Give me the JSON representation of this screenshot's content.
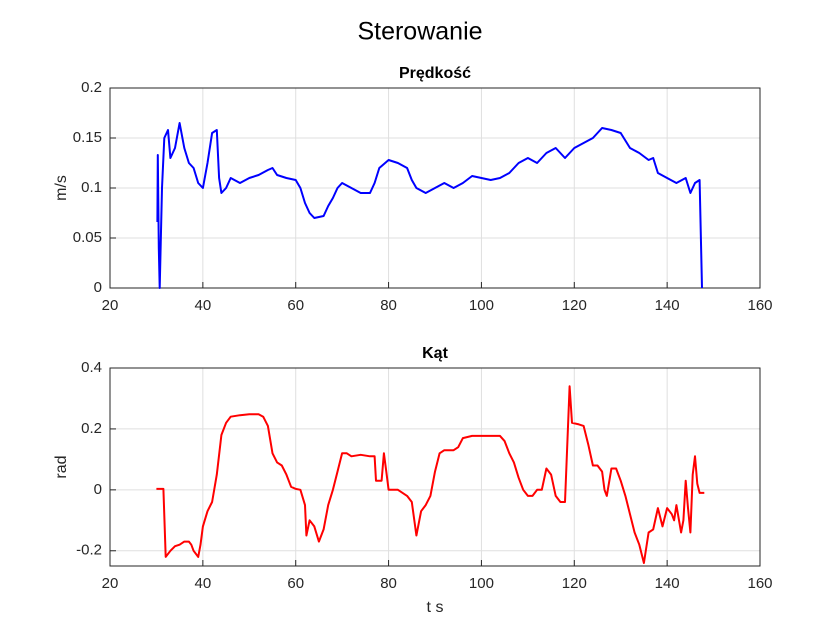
{
  "title": "Sterowanie",
  "chart_data": [
    {
      "type": "line",
      "title": "Prędkość",
      "ylabel": "m/s",
      "color": "#0000ff",
      "xlim": [
        20,
        160
      ],
      "ylim": [
        0,
        0.2
      ],
      "xticks": [
        20,
        40,
        60,
        80,
        100,
        120,
        140,
        160
      ],
      "yticks": [
        0,
        0.05,
        0.1,
        0.15,
        0.2
      ],
      "grid": true,
      "x": [
        30.2,
        30.3,
        30.5,
        30.7,
        31.2,
        31.7,
        32.5,
        33,
        34,
        35,
        36,
        37,
        38,
        39,
        40,
        41,
        42,
        43,
        43.5,
        44,
        45,
        46,
        48,
        50,
        52,
        54,
        55,
        56,
        58,
        60,
        61,
        62,
        63,
        64,
        66,
        67,
        68,
        69,
        70,
        72,
        74,
        76,
        77,
        78,
        80,
        82,
        84,
        85,
        86,
        88,
        90,
        92,
        94,
        96,
        98,
        100,
        102,
        104,
        106,
        108,
        110,
        112,
        114,
        116,
        118,
        120,
        122,
        124,
        126,
        128,
        130,
        132,
        134,
        136,
        137,
        138,
        140,
        142,
        144,
        145,
        146,
        147,
        147.5
      ],
      "values": [
        0.066,
        0.133,
        0.04,
        0,
        0.1,
        0.15,
        0.158,
        0.13,
        0.14,
        0.165,
        0.14,
        0.125,
        0.12,
        0.105,
        0.1,
        0.125,
        0.155,
        0.158,
        0.11,
        0.095,
        0.1,
        0.11,
        0.105,
        0.11,
        0.113,
        0.118,
        0.12,
        0.113,
        0.11,
        0.108,
        0.1,
        0.085,
        0.075,
        0.07,
        0.072,
        0.082,
        0.09,
        0.1,
        0.105,
        0.1,
        0.095,
        0.095,
        0.105,
        0.12,
        0.128,
        0.125,
        0.12,
        0.108,
        0.1,
        0.095,
        0.1,
        0.105,
        0.1,
        0.105,
        0.112,
        0.11,
        0.108,
        0.11,
        0.115,
        0.125,
        0.13,
        0.125,
        0.135,
        0.14,
        0.13,
        0.14,
        0.145,
        0.15,
        0.16,
        0.158,
        0.155,
        0.14,
        0.135,
        0.128,
        0.13,
        0.115,
        0.11,
        0.105,
        0.11,
        0.095,
        0.105,
        0.108,
        0
      ]
    },
    {
      "type": "line",
      "title": "Kąt",
      "ylabel": "rad",
      "xlabel": "t s",
      "color": "#ff0000",
      "xlim": [
        20,
        160
      ],
      "ylim": [
        -0.25,
        0.4
      ],
      "xticks": [
        20,
        40,
        60,
        80,
        100,
        120,
        140,
        160
      ],
      "yticks": [
        -0.2,
        0,
        0.2,
        0.4
      ],
      "grid": true,
      "x": [
        30,
        31.5,
        32,
        33,
        34,
        35,
        36,
        37,
        37.5,
        38,
        39,
        39.5,
        40,
        41,
        42,
        43,
        44,
        45,
        46,
        48,
        50,
        52,
        53,
        54,
        55,
        56,
        57,
        58,
        59,
        60,
        61,
        62,
        62.3,
        63,
        64,
        65,
        66,
        67,
        68,
        69,
        70,
        71,
        72,
        74,
        76,
        77,
        77.3,
        78.5,
        79,
        79.5,
        80,
        82,
        84,
        85,
        86,
        87,
        88,
        89,
        90,
        91,
        92,
        94,
        95,
        96,
        98,
        100,
        102,
        104,
        105,
        106,
        107,
        108,
        109,
        110,
        111,
        112,
        113,
        114,
        115,
        116,
        117,
        118,
        119,
        119.5,
        121,
        122,
        123,
        124,
        125,
        126,
        126.5,
        127,
        128,
        129,
        130,
        131,
        132,
        133,
        134,
        135,
        136,
        137,
        138,
        139,
        140,
        141,
        141.5,
        142,
        143,
        143.5,
        144,
        144.5,
        145,
        145.5,
        146,
        146.5,
        147,
        148
      ],
      "values": [
        0.003,
        0.003,
        -0.22,
        -0.2,
        -0.185,
        -0.18,
        -0.17,
        -0.17,
        -0.18,
        -0.2,
        -0.22,
        -0.18,
        -0.12,
        -0.07,
        -0.04,
        0.05,
        0.18,
        0.22,
        0.24,
        0.245,
        0.248,
        0.248,
        0.24,
        0.21,
        0.12,
        0.09,
        0.08,
        0.05,
        0.01,
        0.003,
        0,
        -0.05,
        -0.15,
        -0.1,
        -0.12,
        -0.17,
        -0.13,
        -0.05,
        0,
        0.06,
        0.12,
        0.12,
        0.11,
        0.115,
        0.11,
        0.11,
        0.03,
        0.03,
        0.12,
        0.06,
        0,
        0,
        -0.02,
        -0.04,
        -0.15,
        -0.07,
        -0.05,
        -0.02,
        0.06,
        0.12,
        0.13,
        0.13,
        0.14,
        0.17,
        0.177,
        0.177,
        0.177,
        0.177,
        0.16,
        0.12,
        0.09,
        0.04,
        0,
        -0.02,
        -0.02,
        0,
        0,
        0.07,
        0.05,
        -0.02,
        -0.04,
        -0.04,
        0.34,
        0.22,
        0.215,
        0.21,
        0.15,
        0.08,
        0.08,
        0.06,
        0,
        -0.02,
        0.07,
        0.07,
        0.03,
        -0.02,
        -0.08,
        -0.14,
        -0.18,
        -0.24,
        -0.14,
        -0.13,
        -0.06,
        -0.12,
        -0.06,
        -0.08,
        -0.1,
        -0.05,
        -0.14,
        -0.1,
        0.03,
        -0.06,
        -0.14,
        0.05,
        0.11,
        0.02,
        -0.01,
        -0.01
      ]
    }
  ]
}
